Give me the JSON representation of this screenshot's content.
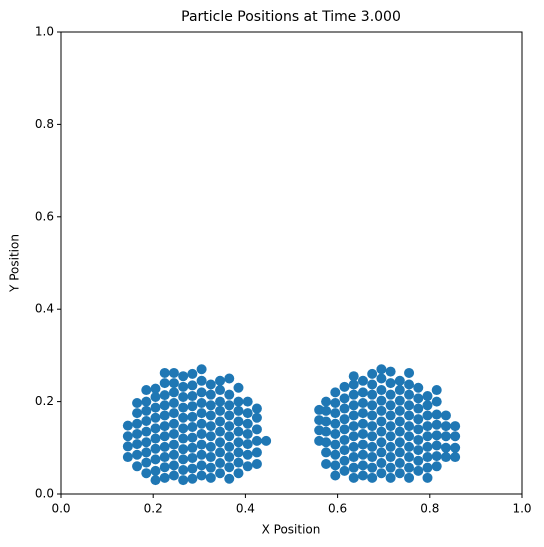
{
  "chart_data": {
    "type": "scatter",
    "title": "Particle Positions at Time 3.000",
    "x_label": "X Position",
    "y_label": "Y Position",
    "color": "#1f77b4",
    "xlim": [
      0,
      1
    ],
    "ylim": [
      0,
      1
    ],
    "xticks": [
      {
        "value": 0,
        "label": "0.0"
      },
      0.2,
      0.4,
      0.6,
      0.8,
      {
        "value": 1,
        "label": "1.0"
      }
    ],
    "yticks": [
      {
        "value": 0,
        "label": "0.0"
      },
      0.2,
      0.4,
      0.6,
      0.8,
      {
        "value": 1,
        "label": "1.0"
      }
    ],
    "x": [
      0.145,
      0.145,
      0.145,
      0.145,
      0.165,
      0.165,
      0.165,
      0.165,
      0.165,
      0.165,
      0.165,
      0.185,
      0.185,
      0.185,
      0.185,
      0.185,
      0.185,
      0.185,
      0.185,
      0.185,
      0.205,
      0.205,
      0.205,
      0.205,
      0.205,
      0.205,
      0.205,
      0.205,
      0.205,
      0.205,
      0.225,
      0.225,
      0.225,
      0.225,
      0.225,
      0.225,
      0.225,
      0.225,
      0.225,
      0.225,
      0.225,
      0.245,
      0.245,
      0.245,
      0.245,
      0.245,
      0.245,
      0.245,
      0.245,
      0.245,
      0.245,
      0.245,
      0.265,
      0.265,
      0.265,
      0.265,
      0.265,
      0.265,
      0.265,
      0.265,
      0.265,
      0.265,
      0.265,
      0.285,
      0.285,
      0.285,
      0.285,
      0.285,
      0.285,
      0.285,
      0.285,
      0.285,
      0.285,
      0.285,
      0.305,
      0.305,
      0.305,
      0.305,
      0.305,
      0.305,
      0.305,
      0.305,
      0.305,
      0.305,
      0.305,
      0.325,
      0.325,
      0.325,
      0.325,
      0.325,
      0.325,
      0.325,
      0.325,
      0.325,
      0.325,
      0.345,
      0.345,
      0.345,
      0.345,
      0.345,
      0.345,
      0.345,
      0.345,
      0.345,
      0.345,
      0.365,
      0.365,
      0.365,
      0.365,
      0.365,
      0.365,
      0.365,
      0.365,
      0.365,
      0.365,
      0.385,
      0.385,
      0.385,
      0.385,
      0.385,
      0.385,
      0.385,
      0.385,
      0.385,
      0.405,
      0.405,
      0.405,
      0.405,
      0.405,
      0.405,
      0.405,
      0.425,
      0.425,
      0.425,
      0.425,
      0.425,
      0.425,
      0.445,
      0.56,
      0.56,
      0.56,
      0.56,
      0.575,
      0.575,
      0.575,
      0.575,
      0.575,
      0.575,
      0.575,
      0.595,
      0.595,
      0.595,
      0.595,
      0.595,
      0.595,
      0.595,
      0.595,
      0.595,
      0.615,
      0.615,
      0.615,
      0.615,
      0.615,
      0.615,
      0.615,
      0.615,
      0.615,
      0.635,
      0.635,
      0.635,
      0.635,
      0.635,
      0.635,
      0.635,
      0.635,
      0.635,
      0.635,
      0.635,
      0.655,
      0.655,
      0.655,
      0.655,
      0.655,
      0.655,
      0.655,
      0.655,
      0.655,
      0.655,
      0.675,
      0.675,
      0.675,
      0.675,
      0.675,
      0.675,
      0.675,
      0.675,
      0.675,
      0.675,
      0.675,
      0.695,
      0.695,
      0.695,
      0.695,
      0.695,
      0.695,
      0.695,
      0.695,
      0.695,
      0.695,
      0.695,
      0.715,
      0.715,
      0.715,
      0.715,
      0.715,
      0.715,
      0.715,
      0.715,
      0.715,
      0.715,
      0.715,
      0.735,
      0.735,
      0.735,
      0.735,
      0.735,
      0.735,
      0.735,
      0.735,
      0.735,
      0.735,
      0.755,
      0.755,
      0.755,
      0.755,
      0.755,
      0.755,
      0.755,
      0.755,
      0.755,
      0.755,
      0.755,
      0.775,
      0.775,
      0.775,
      0.775,
      0.775,
      0.775,
      0.775,
      0.775,
      0.775,
      0.795,
      0.795,
      0.795,
      0.795,
      0.795,
      0.795,
      0.795,
      0.795,
      0.795,
      0.815,
      0.815,
      0.815,
      0.815,
      0.815,
      0.815,
      0.815,
      0.815,
      0.835,
      0.835,
      0.835,
      0.835,
      0.835,
      0.855,
      0.855,
      0.855,
      0.855
    ],
    "y": [
      0.08,
      0.103,
      0.125,
      0.148,
      0.06,
      0.085,
      0.108,
      0.13,
      0.152,
      0.175,
      0.197,
      0.045,
      0.068,
      0.09,
      0.112,
      0.135,
      0.158,
      0.18,
      0.2,
      0.225,
      0.03,
      0.05,
      0.075,
      0.098,
      0.12,
      0.142,
      0.165,
      0.187,
      0.21,
      0.228,
      0.035,
      0.058,
      0.08,
      0.102,
      0.125,
      0.147,
      0.17,
      0.192,
      0.214,
      0.24,
      0.262,
      0.04,
      0.062,
      0.085,
      0.107,
      0.13,
      0.152,
      0.175,
      0.197,
      0.22,
      0.24,
      0.262,
      0.03,
      0.052,
      0.075,
      0.097,
      0.12,
      0.142,
      0.165,
      0.187,
      0.21,
      0.232,
      0.255,
      0.033,
      0.055,
      0.078,
      0.1,
      0.122,
      0.145,
      0.167,
      0.19,
      0.212,
      0.235,
      0.26,
      0.04,
      0.062,
      0.085,
      0.107,
      0.13,
      0.152,
      0.175,
      0.197,
      0.22,
      0.245,
      0.27,
      0.035,
      0.057,
      0.08,
      0.102,
      0.125,
      0.147,
      0.17,
      0.192,
      0.215,
      0.237,
      0.045,
      0.067,
      0.09,
      0.112,
      0.135,
      0.157,
      0.18,
      0.2,
      0.225,
      0.245,
      0.033,
      0.058,
      0.08,
      0.102,
      0.125,
      0.147,
      0.17,
      0.192,
      0.215,
      0.25,
      0.045,
      0.068,
      0.09,
      0.112,
      0.135,
      0.157,
      0.18,
      0.2,
      0.23,
      0.06,
      0.085,
      0.108,
      0.13,
      0.152,
      0.175,
      0.2,
      0.065,
      0.09,
      0.115,
      0.14,
      0.165,
      0.185,
      0.115,
      0.115,
      0.138,
      0.16,
      0.182,
      0.065,
      0.09,
      0.112,
      0.135,
      0.157,
      0.18,
      0.2,
      0.04,
      0.062,
      0.085,
      0.107,
      0.13,
      0.152,
      0.175,
      0.197,
      0.22,
      0.05,
      0.072,
      0.095,
      0.117,
      0.14,
      0.162,
      0.185,
      0.207,
      0.232,
      0.035,
      0.057,
      0.08,
      0.102,
      0.125,
      0.147,
      0.17,
      0.192,
      0.215,
      0.237,
      0.255,
      0.04,
      0.062,
      0.085,
      0.107,
      0.13,
      0.152,
      0.175,
      0.197,
      0.22,
      0.245,
      0.035,
      0.057,
      0.08,
      0.102,
      0.125,
      0.147,
      0.17,
      0.192,
      0.215,
      0.237,
      0.26,
      0.045,
      0.067,
      0.09,
      0.112,
      0.135,
      0.157,
      0.18,
      0.202,
      0.225,
      0.25,
      0.27,
      0.035,
      0.057,
      0.08,
      0.102,
      0.125,
      0.147,
      0.17,
      0.192,
      0.215,
      0.24,
      0.265,
      0.045,
      0.067,
      0.09,
      0.112,
      0.135,
      0.157,
      0.18,
      0.202,
      0.225,
      0.245,
      0.035,
      0.057,
      0.08,
      0.102,
      0.125,
      0.147,
      0.17,
      0.192,
      0.215,
      0.237,
      0.262,
      0.05,
      0.072,
      0.095,
      0.117,
      0.14,
      0.162,
      0.185,
      0.207,
      0.23,
      0.035,
      0.057,
      0.08,
      0.102,
      0.125,
      0.147,
      0.17,
      0.192,
      0.212,
      0.06,
      0.082,
      0.105,
      0.127,
      0.15,
      0.172,
      0.2,
      0.225,
      0.08,
      0.1,
      0.125,
      0.147,
      0.17,
      0.08,
      0.1,
      0.125,
      0.147
    ]
  }
}
